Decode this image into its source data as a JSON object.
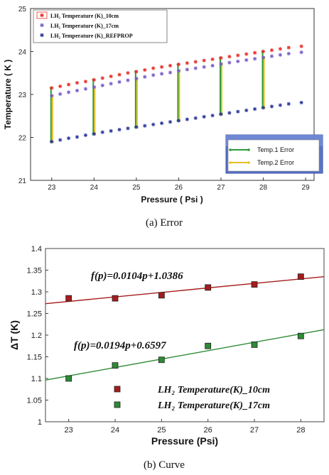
{
  "figure": {
    "caption_a": "(a)  Error",
    "caption_b": "(b)  Curve"
  },
  "chart_data": [
    {
      "type": "scatter",
      "title": "",
      "xlabel": "Pressure ( Psi )",
      "ylabel": "Temperature ( K )",
      "xlim": [
        22.5,
        29.2
      ],
      "ylim": [
        21,
        25
      ],
      "xticks": [
        "23",
        "24",
        "25",
        "26",
        "27",
        "28",
        "29"
      ],
      "yticks": [
        "21",
        "22",
        "23",
        "24",
        "25"
      ],
      "legend_position": "top-left",
      "series": [
        {
          "name": "LH2 Temperature (K)_10cm",
          "legend_label": "LH₂ Temperature (K)_10cm",
          "color": "#e8302a",
          "marker": "asterisk",
          "x": [
            23.0,
            23.2,
            23.4,
            23.6,
            23.8,
            24.0,
            24.2,
            24.4,
            24.6,
            24.8,
            25.0,
            25.2,
            25.4,
            25.6,
            25.8,
            26.0,
            26.2,
            26.4,
            26.6,
            26.8,
            27.0,
            27.2,
            27.4,
            27.6,
            27.8,
            28.0,
            28.2,
            28.4,
            28.6,
            28.9
          ],
          "y": [
            23.15,
            23.19,
            23.23,
            23.27,
            23.3,
            23.34,
            23.38,
            23.42,
            23.46,
            23.5,
            23.53,
            23.57,
            23.61,
            23.64,
            23.67,
            23.7,
            23.73,
            23.76,
            23.79,
            23.82,
            23.85,
            23.88,
            23.91,
            23.94,
            23.97,
            24.0,
            24.03,
            24.06,
            24.09,
            24.12
          ]
        },
        {
          "name": "LH2 Temperature (K)_17cm",
          "legend_label": "LH₂ Temperature (K)_17cm",
          "color": "#7a5ec8",
          "marker": "asterisk",
          "x": [
            23.0,
            23.2,
            23.4,
            23.6,
            23.8,
            24.0,
            24.2,
            24.4,
            24.6,
            24.8,
            25.0,
            25.2,
            25.4,
            25.6,
            25.8,
            26.0,
            26.2,
            26.4,
            26.6,
            26.8,
            27.0,
            27.2,
            27.4,
            27.6,
            27.8,
            28.0,
            28.2,
            28.4,
            28.6,
            28.9
          ],
          "y": [
            22.97,
            23.01,
            23.05,
            23.09,
            23.13,
            23.17,
            23.21,
            23.25,
            23.29,
            23.33,
            23.37,
            23.41,
            23.45,
            23.48,
            23.51,
            23.55,
            23.58,
            23.61,
            23.64,
            23.67,
            23.71,
            23.74,
            23.77,
            23.8,
            23.83,
            23.86,
            23.89,
            23.92,
            23.95,
            23.98
          ]
        },
        {
          "name": "LH2 Temperature (K)_REFPROP",
          "legend_label": "LH₂ Temperature (K)_REFPROP",
          "color": "#2e3a9a",
          "marker": "asterisk",
          "x": [
            23.0,
            23.2,
            23.4,
            23.6,
            23.8,
            24.0,
            24.2,
            24.4,
            24.6,
            24.8,
            25.0,
            25.2,
            25.4,
            25.6,
            25.8,
            26.0,
            26.2,
            26.4,
            26.6,
            26.8,
            27.0,
            27.2,
            27.4,
            27.6,
            27.8,
            28.0,
            28.2,
            28.4,
            28.6,
            28.9
          ],
          "y": [
            21.9,
            21.94,
            21.98,
            22.01,
            22.05,
            22.08,
            22.12,
            22.15,
            22.18,
            22.21,
            22.24,
            22.27,
            22.3,
            22.33,
            22.36,
            22.39,
            22.42,
            22.45,
            22.48,
            22.51,
            22.54,
            22.57,
            22.6,
            22.63,
            22.66,
            22.69,
            22.72,
            22.75,
            22.78,
            22.81
          ]
        }
      ],
      "error_series": [
        {
          "name": "Temp.1 Error",
          "color": "#2e9a3a",
          "x": [
            23,
            24,
            25,
            26,
            27,
            28
          ],
          "y_low": [
            21.9,
            22.08,
            22.24,
            22.39,
            22.54,
            22.69
          ],
          "y_high": [
            23.15,
            23.34,
            23.53,
            23.7,
            23.85,
            24.0
          ]
        },
        {
          "name": "Temp.2 Error",
          "color": "#e8c020",
          "x": [
            23,
            24,
            25,
            26,
            27,
            28
          ],
          "y_low": [
            21.9,
            22.08,
            22.24,
            22.39,
            22.54,
            22.69
          ],
          "y_high": [
            22.97,
            23.17,
            23.37,
            23.55,
            23.71,
            23.86
          ]
        }
      ],
      "error_legend_position": "bottom-right"
    },
    {
      "type": "scatter",
      "title": "",
      "xlabel": "Pressure (Psi)",
      "ylabel": "ΔT (K)",
      "xlim": [
        22.5,
        28.5
      ],
      "ylim": [
        1,
        1.4
      ],
      "xticks": [
        "23",
        "24",
        "25",
        "26",
        "27",
        "28"
      ],
      "yticks": [
        "1",
        "1.05",
        "1.1",
        "1.15",
        "1.2",
        "1.25",
        "1.3",
        "1.35",
        "1.4"
      ],
      "legend_position": "bottom-right",
      "series": [
        {
          "name": "LH2 Temperature(K)_10cm",
          "legend_label": "LH₂ Temperature(K)_10cm",
          "color": "#a61c1c",
          "marker": "square",
          "x": [
            23,
            24,
            25,
            26,
            27,
            28
          ],
          "y": [
            1.285,
            1.285,
            1.292,
            1.31,
            1.317,
            1.335
          ]
        },
        {
          "name": "LH2 Temperature(K)_17cm",
          "legend_label": "LH₂ Temperature(K)_17cm",
          "color": "#2e8a34",
          "marker": "square",
          "x": [
            23,
            24,
            25,
            26,
            27,
            28
          ],
          "y": [
            1.1,
            1.13,
            1.143,
            1.175,
            1.178,
            1.198
          ]
        }
      ],
      "fits": [
        {
          "label": "f(p)=0.0104p+1.0386",
          "slope": 0.0104,
          "intercept": 1.0386,
          "color": "#a61c1c"
        },
        {
          "label": "f(p)=0.0194p+0.6597",
          "slope": 0.0194,
          "intercept": 0.6597,
          "color": "#2e8a34"
        }
      ]
    }
  ]
}
